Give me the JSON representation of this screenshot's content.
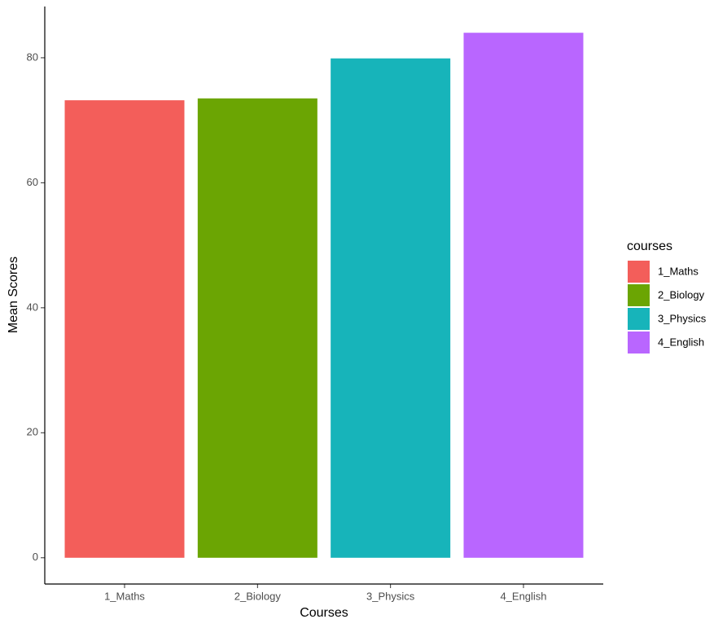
{
  "chart_data": {
    "type": "bar",
    "x_label": "Courses",
    "y_label": "Mean Scores",
    "categories": [
      "1_Maths",
      "2_Biology",
      "3_Physics",
      "4_English"
    ],
    "values": [
      73.2,
      73.5,
      79.9,
      84.0
    ],
    "colors": [
      "#F35E5A",
      "#6BA503",
      "#17B4BA",
      "#B966FF"
    ],
    "legend_title": "courses",
    "legend_position": "right",
    "ylim": [
      -4.2,
      88.2
    ],
    "yticks": [
      0,
      20,
      40,
      60,
      80
    ],
    "grid": false
  }
}
